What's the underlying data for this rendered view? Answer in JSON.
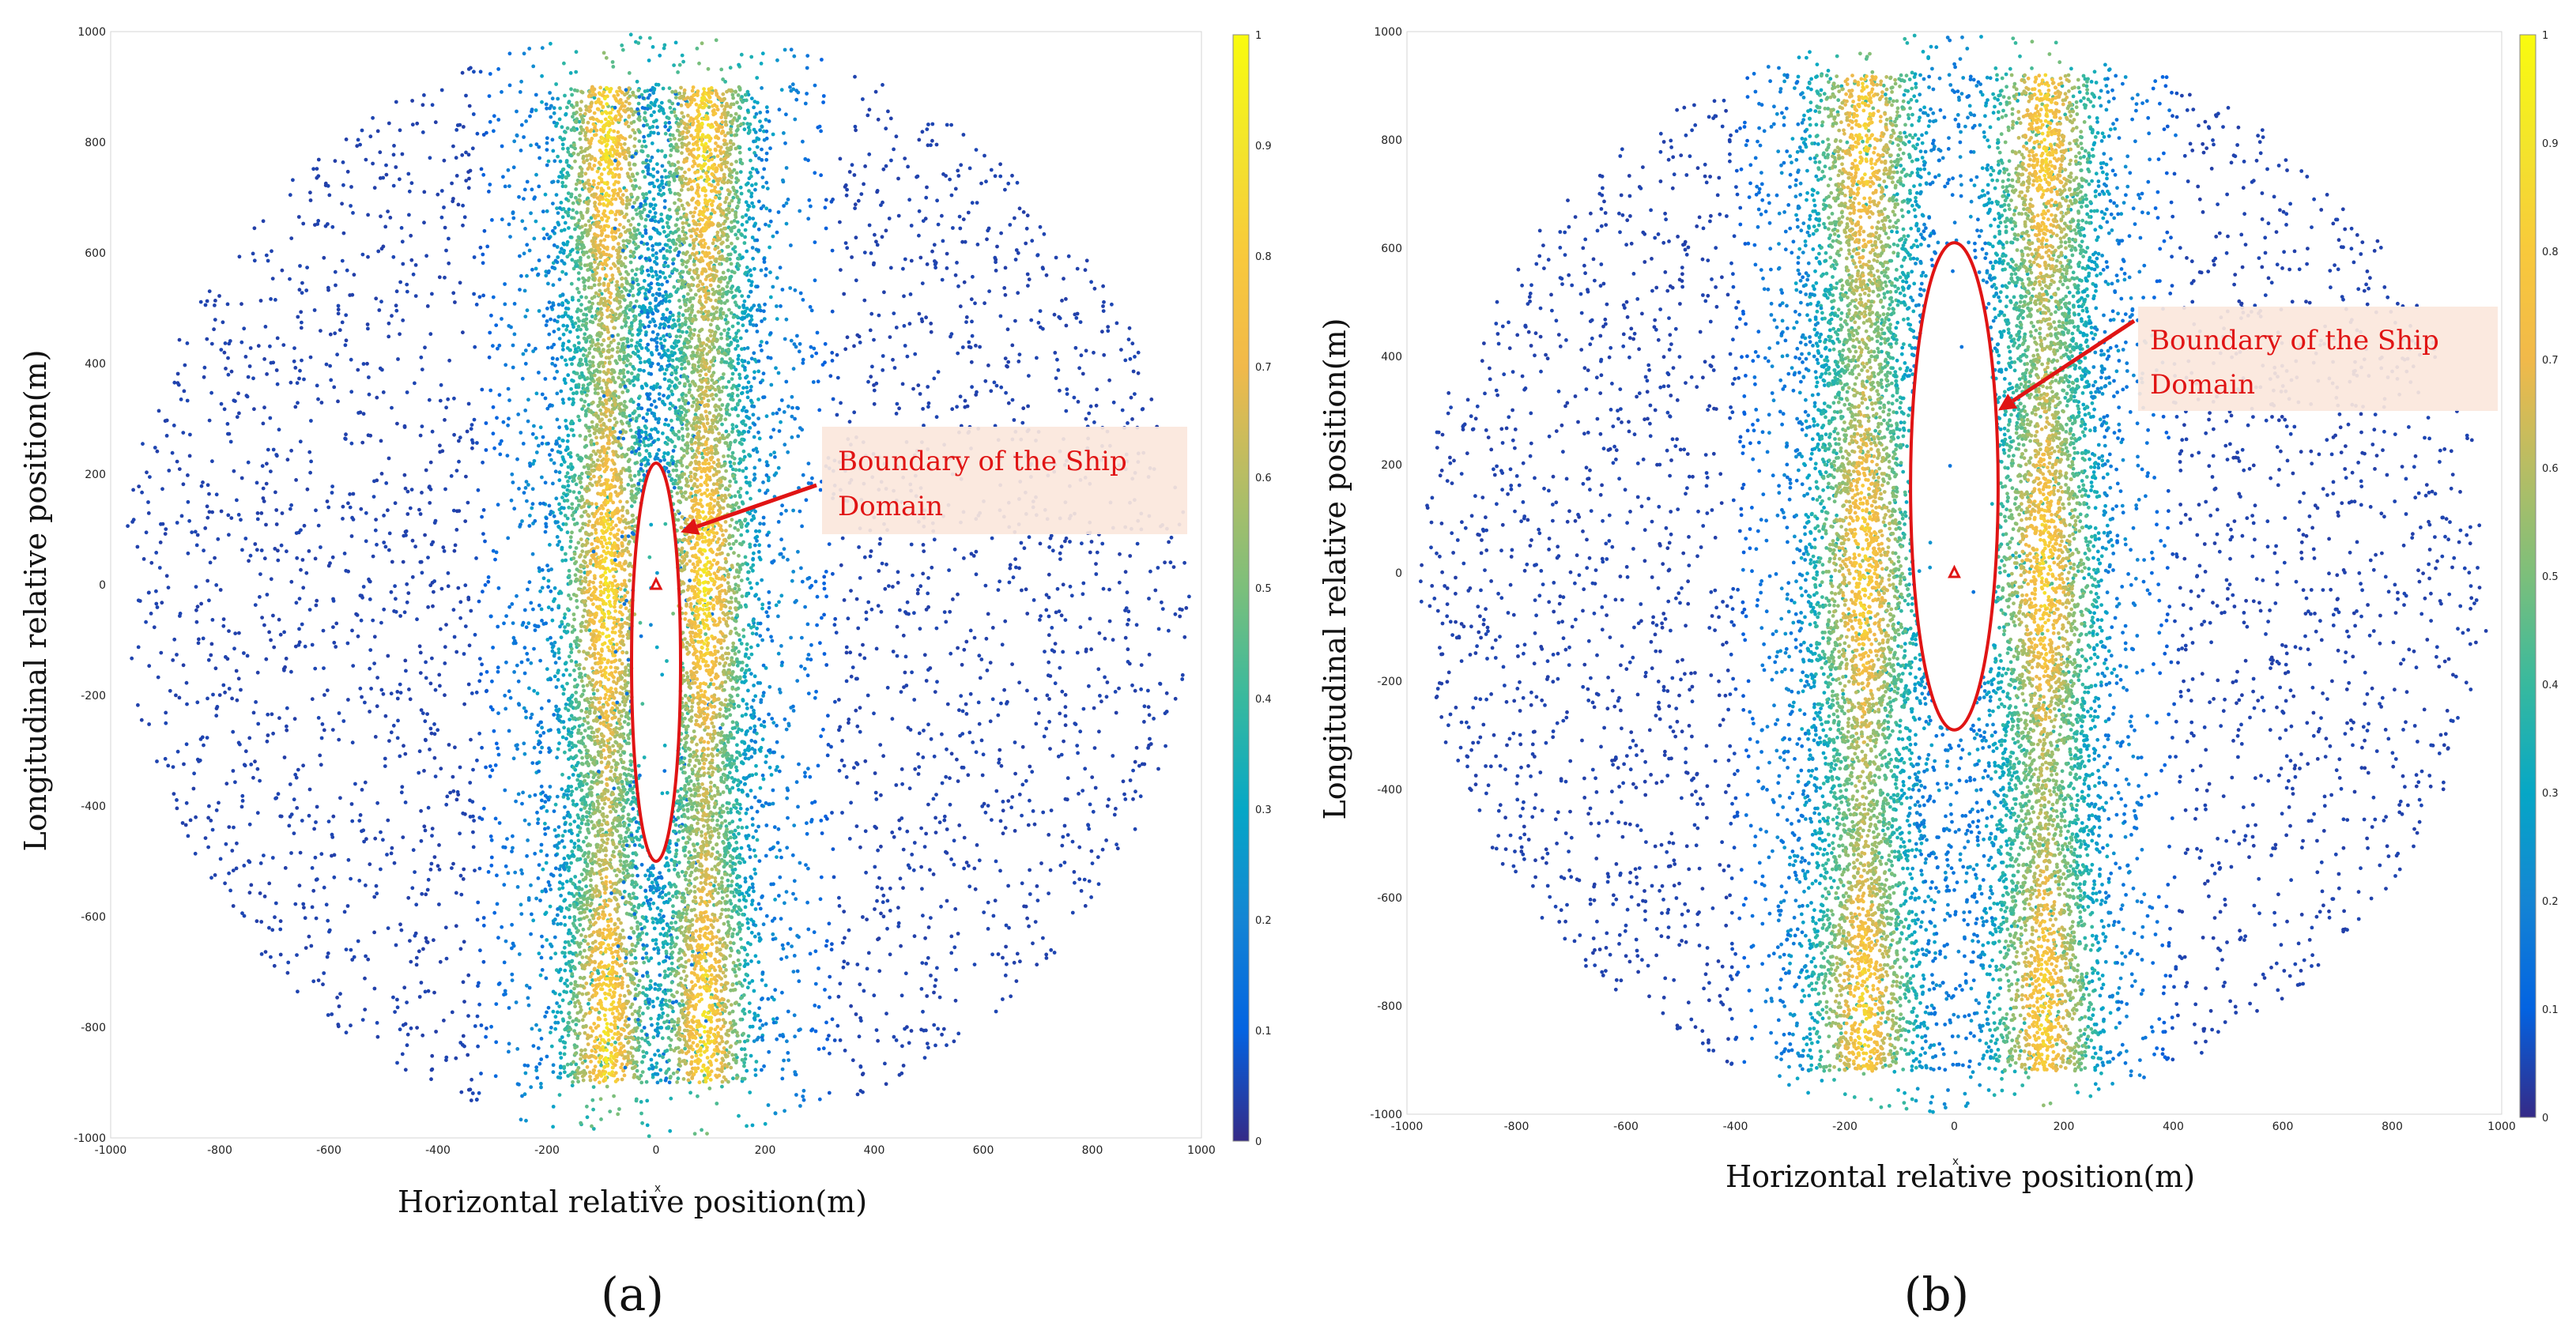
{
  "chart_data": [
    {
      "type": "scatter",
      "panel_label": "(a)",
      "xlabel": "Horizontal relative position(m)",
      "ylabel": "Longitudinal relative position(m)",
      "axis_symbol": "x",
      "xlim": [
        -1000,
        1000
      ],
      "ylim": [
        -1000,
        1000
      ],
      "xticks": [
        "-1000",
        "-800",
        "-600",
        "-400",
        "-200",
        "0",
        "200",
        "400",
        "600",
        "800",
        "1000"
      ],
      "yticks": [
        "-1000",
        "-800",
        "-600",
        "-400",
        "-200",
        "0",
        "200",
        "400",
        "600",
        "800",
        "1000"
      ],
      "colorbar": {
        "range": [
          0,
          1
        ],
        "ticks": [
          "0",
          "0.1",
          "0.2",
          "0.3",
          "0.4",
          "0.5",
          "0.6",
          "0.7",
          "0.8",
          "0.9",
          "1"
        ],
        "colormap": "parula"
      },
      "density_bands": [
        {
          "x_center": -90,
          "x_spread": 55,
          "y_min": -900,
          "y_max": 900,
          "peak": 0.9
        },
        {
          "x_center": 90,
          "x_spread": 55,
          "y_min": -900,
          "y_max": 900,
          "peak": 0.9
        }
      ],
      "domain_boundary": {
        "center": [
          0,
          -140
        ],
        "semi_x": 45,
        "semi_y": 360,
        "color": "#e01414"
      },
      "own_ship": [
        0,
        0
      ],
      "annotation": {
        "lines": [
          "Boundary of the Ship",
          "Domain"
        ],
        "arrow_to": [
          45,
          95
        ]
      }
    },
    {
      "type": "scatter",
      "panel_label": "(b)",
      "xlabel": "Horizontal relative position(m)",
      "ylabel": "Longitudinal relative position(m)",
      "axis_symbol": "x",
      "xlim": [
        -1000,
        1000
      ],
      "ylim": [
        -1000,
        1000
      ],
      "xticks": [
        "-1000",
        "-800",
        "-600",
        "-400",
        "-200",
        "0",
        "200",
        "400",
        "600",
        "800",
        "1000"
      ],
      "yticks": [
        "-1000",
        "-800",
        "-600",
        "-400",
        "-200",
        "0",
        "200",
        "400",
        "600",
        "800",
        "1000"
      ],
      "colorbar": {
        "range": [
          0,
          1
        ],
        "ticks": [
          "0",
          "0.1",
          "0.2",
          "0.3",
          "0.4",
          "0.5",
          "0.6",
          "0.7",
          "0.8",
          "0.9",
          "1"
        ],
        "colormap": "parula"
      },
      "density_bands": [
        {
          "x_center": -165,
          "x_spread": 65,
          "y_min": -920,
          "y_max": 920,
          "peak": 0.85
        },
        {
          "x_center": 165,
          "x_spread": 65,
          "y_min": -920,
          "y_max": 920,
          "peak": 0.85
        }
      ],
      "domain_boundary": {
        "center": [
          0,
          160
        ],
        "semi_x": 80,
        "semi_y": 450,
        "color": "#e01414"
      },
      "own_ship": [
        0,
        0
      ],
      "annotation": {
        "lines": [
          "Boundary of the Ship",
          "Domain"
        ],
        "arrow_to": [
          80,
          300
        ]
      }
    }
  ]
}
